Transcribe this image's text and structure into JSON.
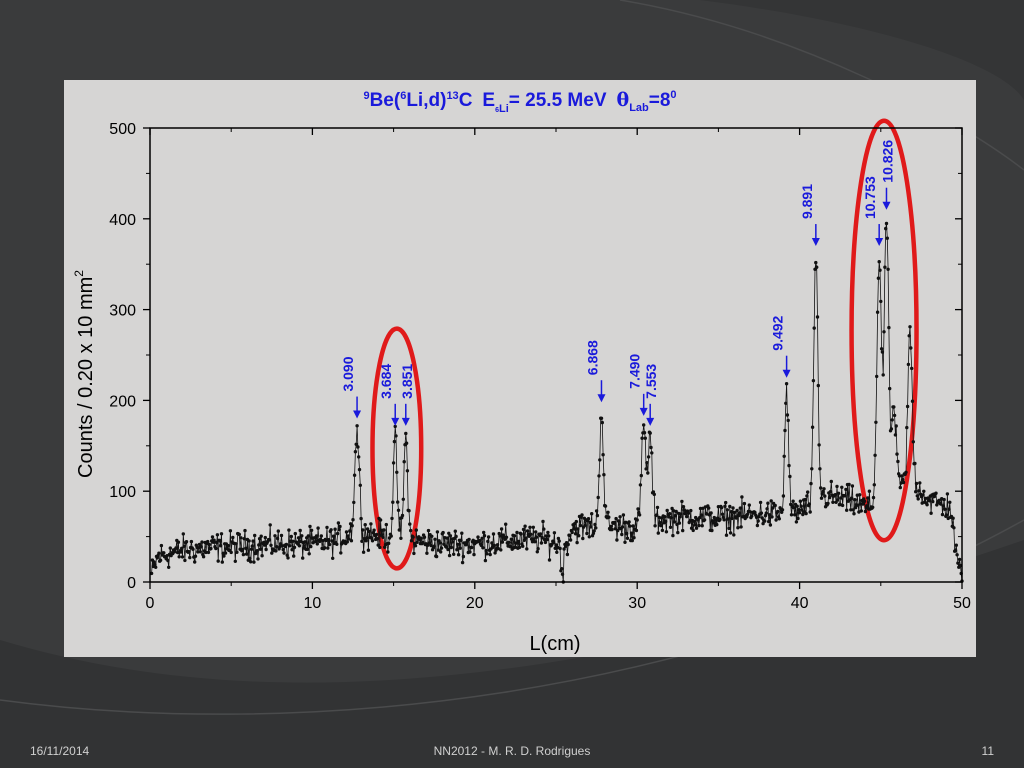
{
  "slide": {
    "footer_date": "16/11/2014",
    "footer_center": "NN2012 - M. R. D. Rodrigues",
    "page_number": "11",
    "background_color": "#3a3b3c"
  },
  "chart_data": {
    "type": "scatter",
    "title_parts": {
      "target_mass": "9",
      "target": "Be(",
      "proj_mass": "6",
      "reaction": "Li,d)",
      "product_mass": "13",
      "product": "C",
      "energy_symbol": "E",
      "energy_sub_mass": "6",
      "energy_sub": "Li",
      "energy_value": "= 25.5 MeV",
      "theta": "θ",
      "theta_sub": "Lab",
      "theta_value": "=8",
      "theta_sup": "0"
    },
    "xlabel": "L(cm)",
    "ylabel": "Counts / 0.20 x 10 mm",
    "ylabel_sup": "2",
    "xlim": [
      0,
      50
    ],
    "ylim": [
      0,
      500
    ],
    "xticks": [
      "0",
      "10",
      "20",
      "30",
      "40",
      "50"
    ],
    "yticks": [
      "0",
      "100",
      "200",
      "300",
      "400",
      "500"
    ],
    "series_color": "#111111",
    "annotation_color": "#1a1adb",
    "highlight_color": "#e01a1a",
    "background": "#d6d5d4",
    "baseline_level": [
      [
        0.1,
        8
      ],
      [
        0.5,
        28
      ],
      [
        2,
        35
      ],
      [
        4,
        38
      ],
      [
        6,
        40
      ],
      [
        8,
        42
      ],
      [
        10,
        42
      ],
      [
        11.5,
        46
      ],
      [
        12.5,
        55
      ],
      [
        14,
        52
      ],
      [
        15,
        48
      ],
      [
        16.5,
        45
      ],
      [
        18,
        42
      ],
      [
        20,
        42
      ],
      [
        22,
        45
      ],
      [
        24,
        48
      ],
      [
        25.2,
        42
      ],
      [
        25.4,
        8
      ],
      [
        25.6,
        42
      ],
      [
        26,
        60
      ],
      [
        28,
        62
      ],
      [
        30,
        60
      ],
      [
        31,
        68
      ],
      [
        33,
        72
      ],
      [
        35,
        70
      ],
      [
        37,
        74
      ],
      [
        39,
        75
      ],
      [
        40,
        78
      ],
      [
        41.5,
        95
      ],
      [
        43,
        90
      ],
      [
        44,
        82
      ],
      [
        45,
        85
      ],
      [
        46,
        105
      ],
      [
        47,
        110
      ],
      [
        48,
        90
      ],
      [
        49.3,
        82
      ],
      [
        49.7,
        20
      ],
      [
        50,
        8
      ]
    ],
    "peaks": [
      {
        "x": 12.75,
        "height": 165,
        "width": 0.14
      },
      {
        "x": 15.1,
        "height": 155,
        "width": 0.12
      },
      {
        "x": 15.75,
        "height": 158,
        "width": 0.12
      },
      {
        "x": 27.8,
        "height": 188,
        "width": 0.12
      },
      {
        "x": 30.4,
        "height": 168,
        "width": 0.14
      },
      {
        "x": 30.8,
        "height": 158,
        "width": 0.12
      },
      {
        "x": 39.2,
        "height": 212,
        "width": 0.11
      },
      {
        "x": 41.0,
        "height": 358,
        "width": 0.12
      },
      {
        "x": 44.9,
        "height": 355,
        "width": 0.14
      },
      {
        "x": 45.35,
        "height": 402,
        "width": 0.13
      },
      {
        "x": 45.8,
        "height": 190,
        "width": 0.14
      },
      {
        "x": 46.8,
        "height": 275,
        "width": 0.13
      }
    ],
    "annotations": [
      {
        "label": "3.090",
        "x": 12.75,
        "arrow_tip_y": 180,
        "text_side": "left"
      },
      {
        "label": "3.684",
        "x": 15.1,
        "arrow_tip_y": 172,
        "text_side": "left"
      },
      {
        "label": "3.851",
        "x": 15.75,
        "arrow_tip_y": 172,
        "text_side": "right"
      },
      {
        "label": "6.868",
        "x": 27.8,
        "arrow_tip_y": 198,
        "text_side": "left"
      },
      {
        "label": "7.490",
        "x": 30.4,
        "arrow_tip_y": 183,
        "text_side": "left"
      },
      {
        "label": "7.553",
        "x": 30.8,
        "arrow_tip_y": 172,
        "text_side": "right"
      },
      {
        "label": "9.492",
        "x": 39.2,
        "arrow_tip_y": 225,
        "text_side": "left"
      },
      {
        "label": "9.891",
        "x": 41.0,
        "arrow_tip_y": 370,
        "text_side": "left"
      },
      {
        "label": "10.753",
        "x": 44.9,
        "arrow_tip_y": 370,
        "text_side": "left"
      },
      {
        "label": "10.826",
        "x": 45.35,
        "arrow_tip_y": 410,
        "text_side": "right"
      }
    ],
    "highlights": [
      {
        "cx": 15.2,
        "cy": 147,
        "rx": 1.5,
        "ry": 132
      },
      {
        "cx": 45.2,
        "cy": 277,
        "rx": 2.0,
        "ry": 231
      }
    ]
  }
}
